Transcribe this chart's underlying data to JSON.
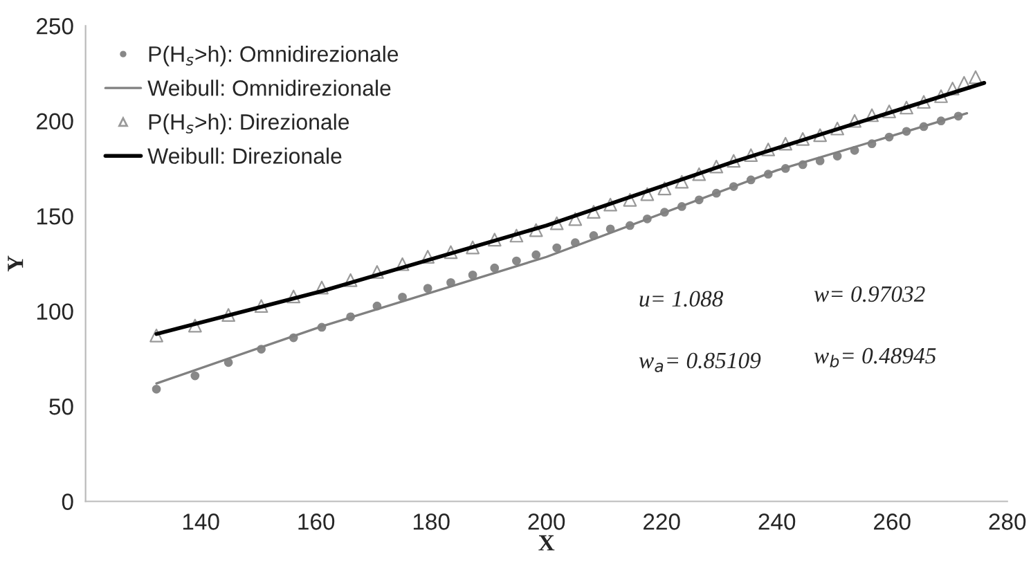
{
  "chart_data": {
    "type": "scatter",
    "xlabel": "X",
    "ylabel": "Y",
    "xlim": [
      120,
      280
    ],
    "ylim": [
      0,
      250
    ],
    "xticks": [
      140,
      160,
      180,
      200,
      220,
      240,
      260,
      280
    ],
    "yticks": [
      0,
      50,
      100,
      150,
      200,
      250
    ],
    "grid": false,
    "legend": "top left",
    "annotations": [
      "u= 1.088",
      "w= 0.97032",
      "w$_{a}$= 0.85109",
      "w$_{b}$= 0.48945"
    ],
    "series": [
      {
        "name": "P(H$_{s}$>h): Omnidirezionale",
        "marker": "circle",
        "color": "#888888",
        "x": [
          132.3,
          139,
          144.8,
          150.5,
          156.1,
          161,
          166,
          170.6,
          175,
          179.4,
          183.4,
          187.2,
          191,
          194.8,
          198.2,
          201.8,
          205,
          208.2,
          211.1,
          214.5,
          217.5,
          220.5,
          223.5,
          226.5,
          229.5,
          232.5,
          235.5,
          238.5,
          241.5,
          244.5,
          247.5,
          250.5,
          253.5,
          256.5,
          259.5,
          262.5,
          265.5,
          268.5,
          271.5
        ],
        "values": [
          59,
          66,
          73,
          80,
          86,
          91.5,
          97,
          102.7,
          107.4,
          112,
          115,
          119,
          122.7,
          126.4,
          129.6,
          133.3,
          136,
          139.7,
          143.2,
          145,
          148.5,
          152,
          155,
          158.5,
          162,
          165.5,
          169,
          172,
          175,
          177,
          179,
          181.5,
          184.5,
          188,
          191.5,
          194.5,
          197,
          200,
          202.5
        ]
      },
      {
        "name": "Weibull: Omnidirezionale",
        "type": "line",
        "marker": "none",
        "color": "#808080",
        "x": [
          132.3,
          161,
          200,
          240,
          273
        ],
        "values": [
          62,
          92,
          128.5,
          174,
          204
        ]
      },
      {
        "name": "P(H$_{s}$>h): Direzionale",
        "marker": "triangle",
        "color": "#999999",
        "x": [
          132.3,
          139,
          144.8,
          150.5,
          156.1,
          161,
          166,
          170.6,
          175,
          179.4,
          183.4,
          187.2,
          191,
          194.8,
          198.2,
          201.8,
          205,
          208.2,
          211.1,
          214.5,
          217.5,
          220.5,
          223.5,
          226.5,
          229.5,
          232.5,
          235.5,
          238.5,
          241.5,
          244.5,
          247.5,
          250.5,
          253.5,
          256.5,
          259.5,
          262.5,
          265.5,
          268.5,
          270.5,
          272.5,
          274.5
        ],
        "values": [
          87.2,
          92.4,
          98,
          102.7,
          107.7,
          112.4,
          116.3,
          120.6,
          124.7,
          128.6,
          131,
          133.5,
          137.6,
          139.7,
          142.6,
          146.2,
          148.4,
          152.2,
          156,
          158.5,
          161.5,
          164.5,
          168,
          172,
          176,
          179,
          182,
          185,
          188,
          190.5,
          192.5,
          196,
          200,
          203,
          205,
          207,
          210,
          213,
          217,
          220,
          223
        ]
      },
      {
        "name": "Weibull: Direzionale",
        "type": "line",
        "marker": "none",
        "color": "#000000",
        "x": [
          132.3,
          161,
          200,
          232,
          276
        ],
        "values": [
          88,
          110.5,
          145,
          178,
          220
        ]
      }
    ]
  }
}
